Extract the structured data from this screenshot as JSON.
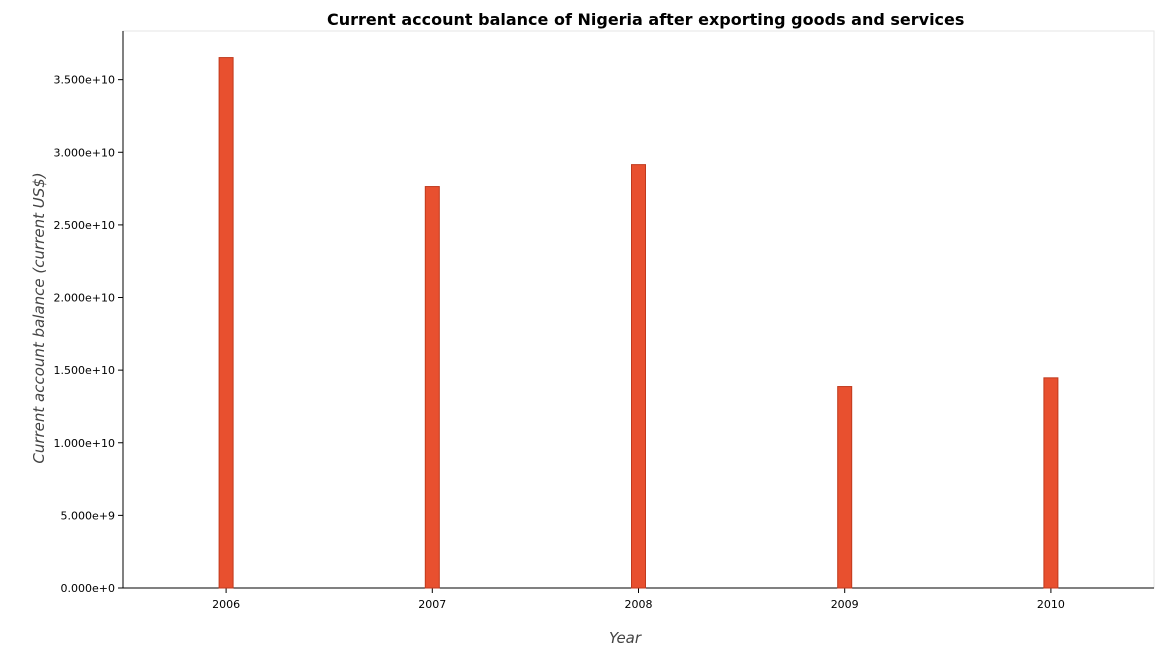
{
  "chart_data": {
    "type": "bar",
    "title": "Current account balance of Nigeria after exporting goods and services",
    "xlabel": "Year",
    "ylabel": "Current account balance (current US$)",
    "categories": [
      "2006",
      "2007",
      "2008",
      "2009",
      "2010"
    ],
    "values": [
      36520000000,
      27640000000,
      29150000000,
      13870000000,
      14470000000
    ],
    "yticks": [
      0,
      5000000000,
      10000000000,
      15000000000,
      20000000000,
      25000000000,
      30000000000,
      35000000000
    ],
    "ytick_labels": [
      "0.000e+0",
      "5.000e+9",
      "1.000e+10",
      "1.500e+10",
      "2.000e+10",
      "2.500e+10",
      "3.000e+10",
      "3.500e+10"
    ],
    "ylim": [
      0,
      38350000000
    ],
    "bar_color": "#e8502f",
    "bar_edge_color": "#c0391c",
    "grid": false,
    "legend": "none"
  }
}
